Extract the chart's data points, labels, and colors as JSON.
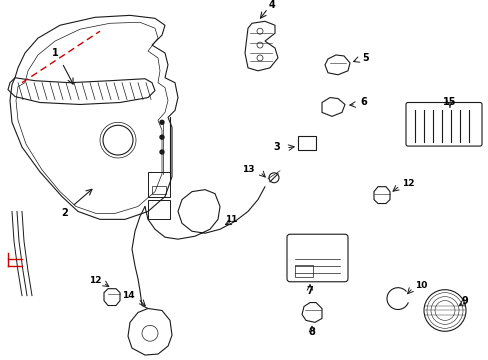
{
  "bg_color": "#ffffff",
  "line_color": "#1a1a1a",
  "red_color": "#cc0000",
  "fig_w": 4.89,
  "fig_h": 3.6,
  "dpi": 100,
  "xlim": [
    0,
    489
  ],
  "ylim": [
    0,
    360
  ]
}
